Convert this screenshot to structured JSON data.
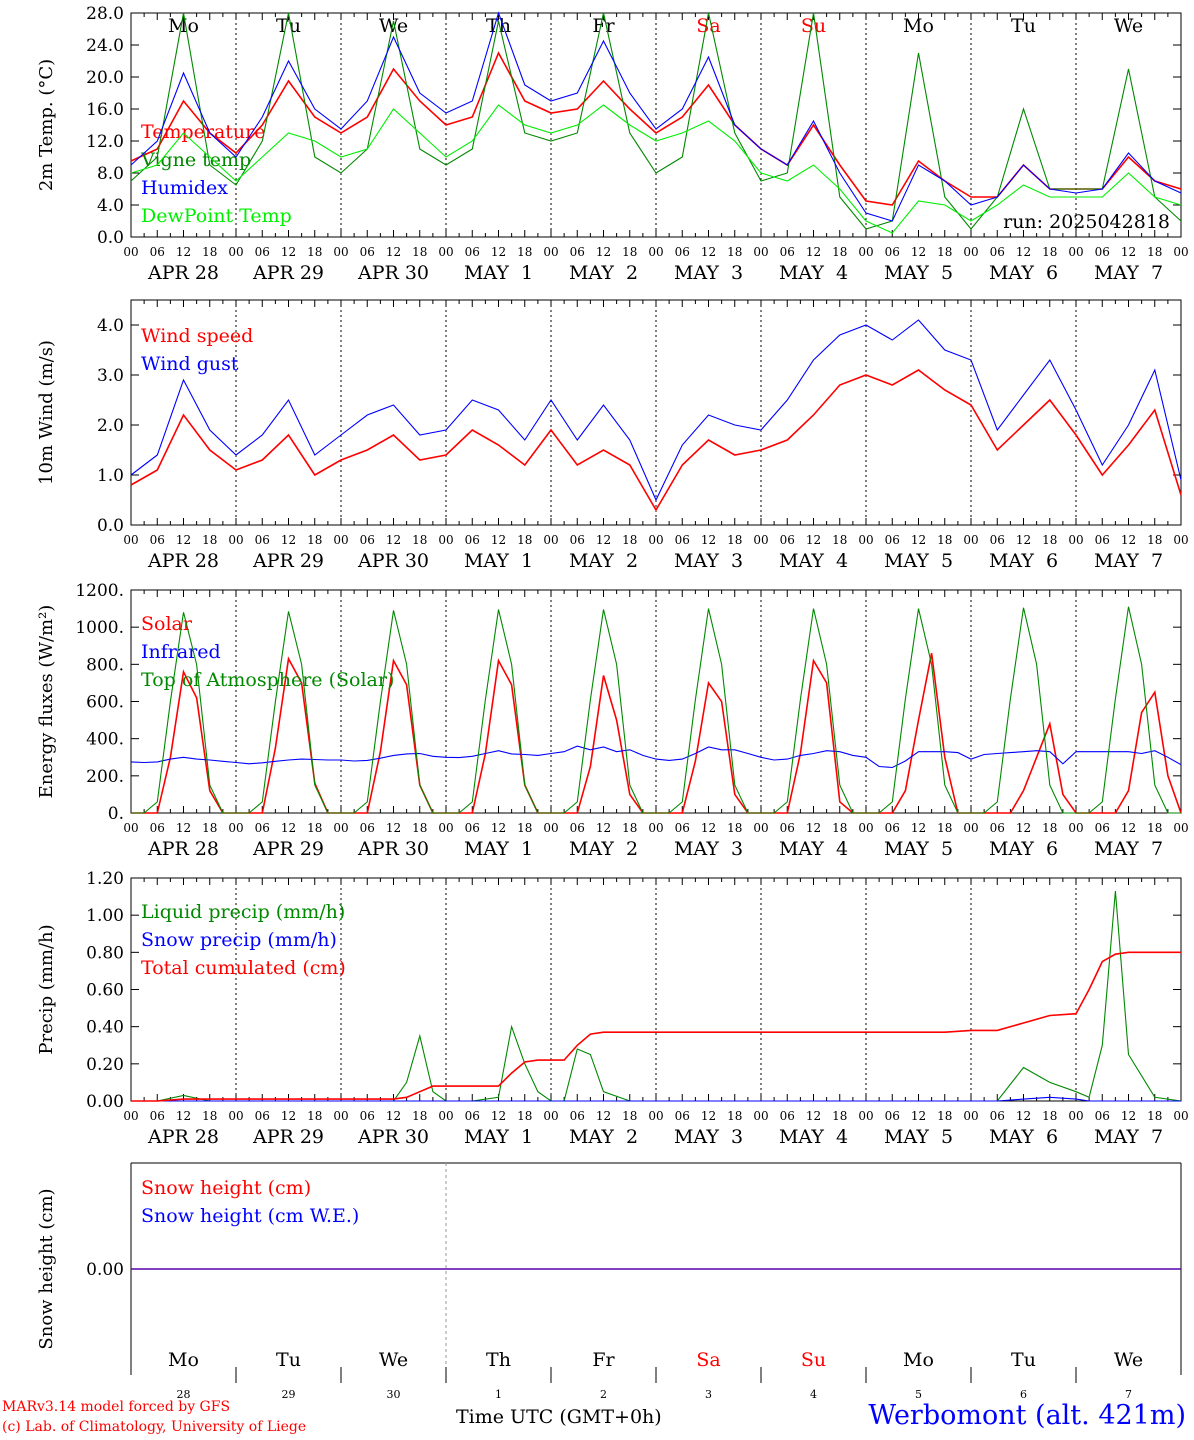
{
  "meta": {
    "run_label": "run: 2025042818",
    "model_credit": "MARv3.14 model forced by GFS",
    "lab_credit": "(c) Lab. of Climatology, University of Liege",
    "station": "Werbomont (alt. 421m)",
    "x_axis_title": "Time UTC (GMT+0h)",
    "month_label": "MAY"
  },
  "colors": {
    "red": "#ff0000",
    "green": "#008800",
    "blue": "#0000ff",
    "lightgreen": "#00ee00",
    "weekend": "#ff0000",
    "axis": "#000000"
  },
  "days": {
    "weekday_labels": [
      "Mo",
      "Tu",
      "We",
      "Th",
      "Fr",
      "Sa",
      "Su",
      "Mo",
      "Tu",
      "We"
    ],
    "weekend_flags": [
      false,
      false,
      false,
      false,
      false,
      true,
      true,
      false,
      false,
      false
    ],
    "date_labels": [
      "APR 28",
      "APR 29",
      "APR 30",
      "MAY  1",
      "MAY  2",
      "MAY  3",
      "MAY  4",
      "MAY  5",
      "MAY  6",
      "MAY  7"
    ],
    "day_numbers": [
      "28",
      "29",
      "30",
      "1",
      "2",
      "3",
      "4",
      "5",
      "6",
      "7"
    ],
    "hour_tick_labels": [
      "00",
      "06",
      "12",
      "18"
    ],
    "final_hour_label": "00"
  },
  "chart_data": [
    {
      "type": "line",
      "ylabel": "2m Temp. (°C)",
      "ylim": [
        0,
        28
      ],
      "y_ticks": [
        "0.0",
        "4.0",
        "8.0",
        "12.0",
        "16.0",
        "20.0",
        "24.0",
        "28.0"
      ],
      "x_unit": "hours since Apr 28 00 UTC",
      "x": [
        0,
        6,
        12,
        18,
        24,
        30,
        36,
        42,
        48,
        54,
        60,
        66,
        72,
        78,
        84,
        90,
        96,
        102,
        108,
        114,
        120,
        126,
        132,
        138,
        144,
        150,
        156,
        162,
        168,
        174,
        180,
        186,
        192,
        198,
        204,
        210,
        216,
        222,
        228,
        234,
        240
      ],
      "series": [
        {
          "name": "Temperature",
          "color": "red",
          "values": [
            9.5,
            11,
            17,
            13,
            10.5,
            14,
            19.5,
            15,
            13,
            15,
            21,
            17,
            14,
            15,
            23,
            17,
            15.5,
            16,
            19.5,
            16,
            13,
            15,
            19,
            14,
            11,
            9,
            14,
            9,
            4.5,
            4,
            9.5,
            7,
            5,
            5,
            9,
            6,
            6,
            6,
            10,
            7,
            6
          ]
        },
        {
          "name": "Vigne temp",
          "color": "green",
          "values": [
            7,
            10,
            28,
            9,
            6.5,
            12,
            28,
            10,
            8,
            11,
            27,
            11,
            9,
            11,
            27,
            13,
            12,
            13,
            28,
            13,
            8,
            10,
            28,
            13,
            7,
            8,
            28,
            5,
            1,
            2,
            23,
            5,
            1,
            5,
            16,
            6,
            6,
            6,
            21,
            5,
            2
          ]
        },
        {
          "name": "Humidex",
          "color": "blue",
          "values": [
            9,
            12,
            20.5,
            13,
            10,
            15,
            22,
            16,
            13.5,
            17,
            25,
            18,
            15.5,
            17,
            28,
            19,
            17,
            18,
            24.5,
            18,
            13.5,
            16,
            22.5,
            14,
            11,
            9,
            14.5,
            8,
            3,
            2,
            9,
            7,
            4,
            5,
            9,
            6,
            5.5,
            6,
            10.5,
            7,
            5.5
          ]
        },
        {
          "name": "DewPoint Temp",
          "color": "lightgreen",
          "values": [
            8,
            9,
            13,
            10,
            7,
            10,
            13,
            12,
            10,
            11,
            16,
            13,
            10,
            12,
            16.5,
            14,
            13,
            14,
            16.5,
            14,
            12,
            13,
            14.5,
            12,
            8,
            7,
            9,
            6,
            2,
            0.5,
            4.5,
            4,
            2,
            4,
            6.5,
            5,
            5,
            5,
            8,
            5,
            4
          ]
        }
      ]
    },
    {
      "type": "line",
      "ylabel": "10m Wind (m/s)",
      "ylim": [
        0,
        4.5
      ],
      "y_ticks": [
        "0.0",
        "1.0",
        "2.0",
        "3.0",
        "4.0"
      ],
      "x_unit": "hours since Apr 28 00 UTC",
      "x": [
        0,
        6,
        12,
        18,
        24,
        30,
        36,
        42,
        48,
        54,
        60,
        66,
        72,
        78,
        84,
        90,
        96,
        102,
        108,
        114,
        120,
        126,
        132,
        138,
        144,
        150,
        156,
        162,
        168,
        174,
        180,
        186,
        192,
        198,
        204,
        210,
        216,
        222,
        228,
        234,
        240
      ],
      "series": [
        {
          "name": "Wind speed",
          "color": "red",
          "values": [
            0.8,
            1.1,
            2.2,
            1.5,
            1.1,
            1.3,
            1.8,
            1.0,
            1.3,
            1.5,
            1.8,
            1.3,
            1.4,
            1.9,
            1.6,
            1.2,
            1.9,
            1.2,
            1.5,
            1.2,
            0.3,
            1.2,
            1.7,
            1.4,
            1.5,
            1.7,
            2.2,
            2.8,
            3.0,
            2.8,
            3.1,
            2.7,
            2.4,
            1.5,
            2.0,
            2.5,
            1.8,
            1.0,
            1.6,
            2.3,
            0.6
          ]
        },
        {
          "name": "Wind gust",
          "color": "blue",
          "values": [
            1.0,
            1.4,
            2.9,
            1.9,
            1.4,
            1.8,
            2.5,
            1.4,
            1.8,
            2.2,
            2.4,
            1.8,
            1.9,
            2.5,
            2.3,
            1.7,
            2.5,
            1.7,
            2.4,
            1.7,
            0.5,
            1.6,
            2.2,
            2.0,
            1.9,
            2.5,
            3.3,
            3.8,
            4.0,
            3.7,
            4.1,
            3.5,
            3.3,
            1.9,
            2.6,
            3.3,
            2.3,
            1.2,
            2.0,
            3.1,
            0.9
          ]
        }
      ]
    },
    {
      "type": "line",
      "ylabel": "Energy fluxes (W/m²)",
      "ylim": [
        0,
        1200
      ],
      "y_ticks": [
        "0.",
        "200.",
        "400.",
        "600.",
        "800.",
        "1000.",
        "1200."
      ],
      "x_unit": "hours since Apr 28 00 UTC",
      "x": [
        0,
        3,
        6,
        9,
        12,
        15,
        18,
        21,
        24,
        27,
        30,
        33,
        36,
        39,
        42,
        45,
        48,
        51,
        54,
        57,
        60,
        63,
        66,
        69,
        72,
        75,
        78,
        81,
        84,
        87,
        90,
        93,
        96,
        99,
        102,
        105,
        108,
        111,
        114,
        117,
        120,
        123,
        126,
        129,
        132,
        135,
        138,
        141,
        144,
        147,
        150,
        153,
        156,
        159,
        162,
        165,
        168,
        171,
        174,
        177,
        180,
        183,
        186,
        189,
        192,
        195,
        198,
        201,
        204,
        207,
        210,
        213,
        216,
        219,
        222,
        225,
        228,
        231,
        234,
        237,
        240
      ],
      "series": [
        {
          "name": "Solar",
          "color": "red",
          "values": [
            0,
            0,
            0,
            300,
            760,
            620,
            120,
            0,
            0,
            0,
            0,
            350,
            830,
            700,
            160,
            0,
            0,
            0,
            0,
            330,
            820,
            690,
            150,
            0,
            0,
            0,
            0,
            320,
            820,
            690,
            150,
            0,
            0,
            0,
            0,
            250,
            740,
            500,
            100,
            0,
            0,
            0,
            0,
            280,
            700,
            600,
            100,
            0,
            0,
            0,
            0,
            320,
            820,
            700,
            60,
            0,
            0,
            0,
            0,
            120,
            500,
            860,
            300,
            0,
            0,
            0,
            0,
            0,
            120,
            300,
            480,
            100,
            0,
            0,
            0,
            0,
            120,
            540,
            650,
            200,
            0
          ]
        },
        {
          "name": "Infrared",
          "color": "blue",
          "values": [
            275,
            272,
            275,
            290,
            300,
            290,
            285,
            278,
            272,
            265,
            270,
            278,
            285,
            290,
            288,
            285,
            285,
            280,
            283,
            295,
            310,
            318,
            320,
            305,
            300,
            298,
            305,
            320,
            335,
            318,
            315,
            310,
            320,
            330,
            360,
            340,
            355,
            330,
            340,
            310,
            290,
            283,
            290,
            320,
            355,
            340,
            340,
            320,
            300,
            285,
            290,
            310,
            320,
            335,
            330,
            310,
            300,
            250,
            245,
            280,
            330,
            330,
            330,
            325,
            290,
            315,
            320,
            325,
            330,
            335,
            330,
            265,
            330,
            330,
            330,
            330,
            330,
            320,
            335,
            300,
            260
          ]
        },
        {
          "name": "Top of Atmosphere (Solar)",
          "color": "green",
          "values": [
            0,
            0,
            60,
            600,
            1080,
            800,
            150,
            0,
            0,
            0,
            60,
            600,
            1085,
            800,
            150,
            0,
            0,
            0,
            60,
            600,
            1090,
            800,
            150,
            0,
            0,
            0,
            60,
            610,
            1095,
            800,
            150,
            0,
            0,
            0,
            60,
            610,
            1095,
            800,
            150,
            0,
            0,
            0,
            60,
            610,
            1100,
            800,
            150,
            0,
            0,
            0,
            60,
            610,
            1100,
            800,
            150,
            0,
            0,
            0,
            60,
            615,
            1100,
            800,
            150,
            0,
            0,
            0,
            60,
            615,
            1105,
            800,
            150,
            0,
            0,
            0,
            60,
            615,
            1110,
            800,
            150,
            0,
            0
          ]
        }
      ]
    },
    {
      "type": "line",
      "ylabel": "Precip (mm/h)",
      "ylim": [
        0,
        1.2
      ],
      "y_ticks": [
        "0.00",
        "0.20",
        "0.40",
        "0.60",
        "0.80",
        "1.00",
        "1.20"
      ],
      "x_unit": "hours since Apr 28 00 UTC",
      "x": [
        0,
        6,
        12,
        18,
        24,
        30,
        36,
        42,
        48,
        54,
        60,
        63,
        66,
        69,
        72,
        78,
        84,
        87,
        90,
        93,
        96,
        99,
        102,
        105,
        108,
        114,
        120,
        126,
        132,
        138,
        144,
        150,
        156,
        162,
        168,
        174,
        180,
        186,
        192,
        198,
        204,
        210,
        216,
        219,
        222,
        225,
        228,
        234,
        240
      ],
      "series": [
        {
          "name": "Liquid precip (mm/h)",
          "color": "green",
          "values": [
            0,
            0,
            0.03,
            0,
            0,
            0,
            0,
            0,
            0,
            0,
            0,
            0.1,
            0.35,
            0.05,
            0,
            0,
            0.02,
            0.4,
            0.2,
            0.05,
            0,
            0,
            0.28,
            0.25,
            0.05,
            0,
            0,
            0,
            0,
            0,
            0,
            0,
            0,
            0,
            0,
            0,
            0,
            0,
            0,
            0,
            0.18,
            0.1,
            0.05,
            0.02,
            0.3,
            1.13,
            0.25,
            0.02,
            0
          ]
        },
        {
          "name": "Snow precip (mm/h)",
          "color": "blue",
          "values": [
            0,
            0,
            0,
            0,
            0,
            0,
            0,
            0,
            0,
            0,
            0,
            0,
            0,
            0,
            0,
            0,
            0,
            0,
            0,
            0,
            0,
            0,
            0,
            0,
            0,
            0,
            0,
            0,
            0,
            0,
            0,
            0,
            0,
            0,
            0,
            0,
            0,
            0,
            0,
            0,
            0.01,
            0.02,
            0.01,
            0,
            0,
            0,
            0,
            0,
            0
          ]
        },
        {
          "name": "Total cumulated (cm)",
          "color": "red",
          "values": [
            0,
            0,
            0.01,
            0.01,
            0.01,
            0.01,
            0.01,
            0.01,
            0.01,
            0.01,
            0.01,
            0.02,
            0.05,
            0.08,
            0.08,
            0.08,
            0.08,
            0.15,
            0.21,
            0.22,
            0.22,
            0.22,
            0.3,
            0.36,
            0.37,
            0.37,
            0.37,
            0.37,
            0.37,
            0.37,
            0.37,
            0.37,
            0.37,
            0.37,
            0.37,
            0.37,
            0.37,
            0.37,
            0.38,
            0.38,
            0.42,
            0.46,
            0.47,
            0.6,
            0.75,
            0.79,
            0.8,
            0.8,
            0.8
          ]
        }
      ]
    },
    {
      "type": "line",
      "ylabel": "Snow height (cm)",
      "ylim": [
        -1,
        1
      ],
      "y_ticks": [
        "0.00"
      ],
      "x_unit": "hours since Apr 28 00 UTC",
      "x": [
        0,
        240
      ],
      "series": [
        {
          "name": "Snow height (cm)",
          "color": "red",
          "values": [
            0,
            0
          ]
        },
        {
          "name": "Snow height (cm W.E.)",
          "color": "blue",
          "values": [
            0,
            0
          ]
        }
      ]
    }
  ]
}
